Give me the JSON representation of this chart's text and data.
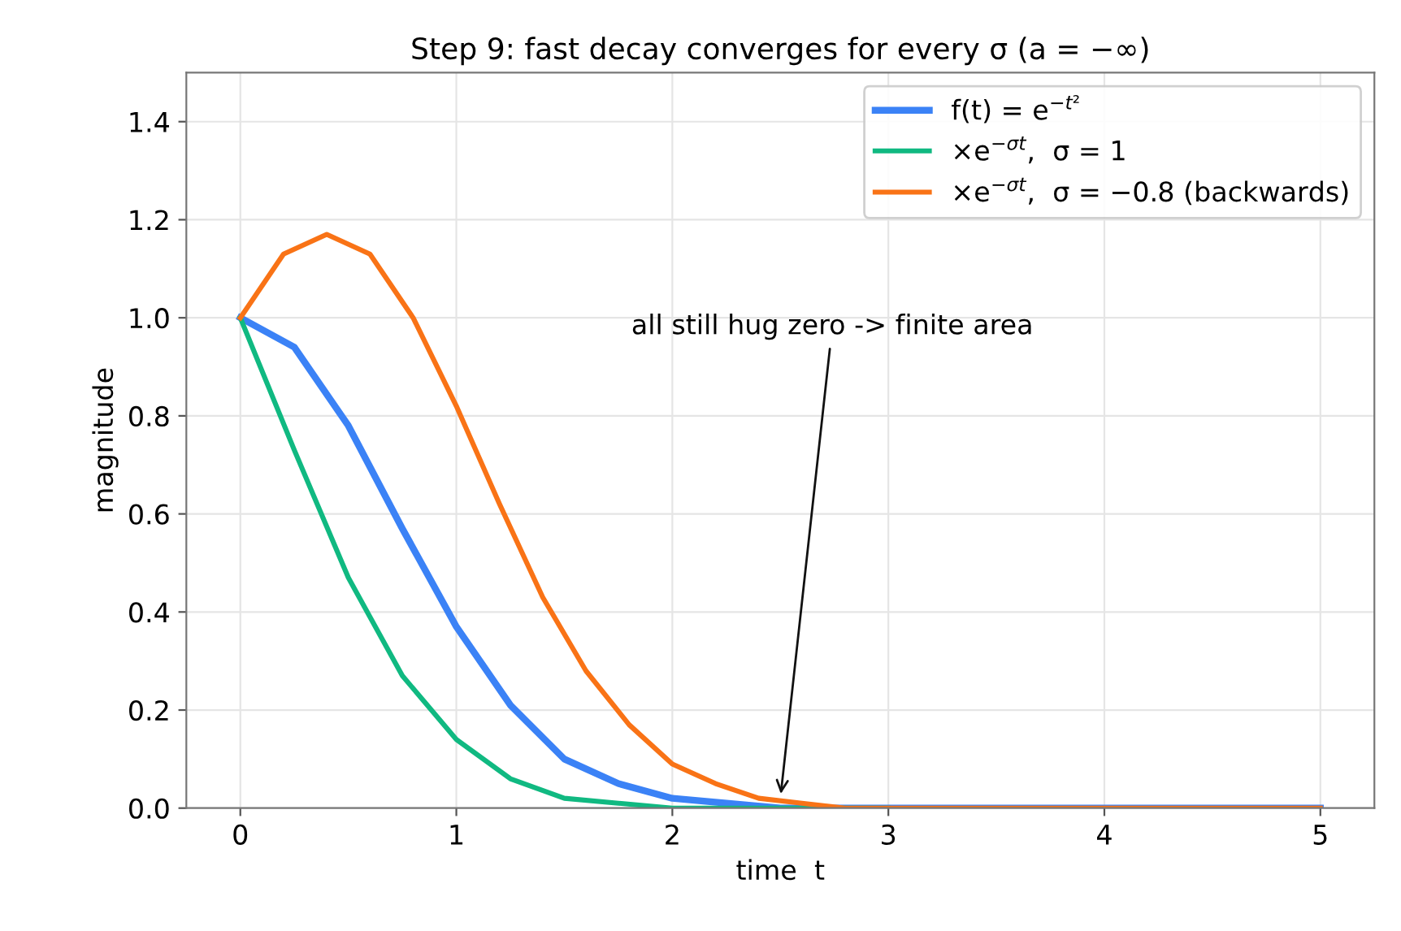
{
  "chart_data": {
    "type": "line",
    "title": "Step 9: fast decay converges for every σ (a = −∞)",
    "xlabel": "time  t",
    "ylabel": "magnitude",
    "xlim": [
      -0.25,
      5.25
    ],
    "ylim": [
      0,
      1.5
    ],
    "xticks": [
      0,
      1,
      2,
      3,
      4,
      5
    ],
    "yticks": [
      {
        "value": 0,
        "label": "0.0"
      },
      0.2,
      0.4,
      0.6,
      0.8,
      {
        "value": 1,
        "label": "1.0"
      },
      1.2,
      1.4
    ],
    "grid": true,
    "legend": "top right",
    "marker": "none",
    "line_style": "solid",
    "annotations": [
      {
        "text": "all still hug zero -> finite area",
        "x": 2.5,
        "y": 0.02
      }
    ],
    "series": [
      {
        "name": "f(t) = e$^{−t²}$",
        "color": "#3b82f6",
        "x": [
          0,
          0.25,
          0.5,
          0.75,
          1,
          1.25,
          1.5,
          1.75,
          2,
          2.5,
          3,
          4,
          5
        ],
        "values": [
          1.0,
          0.94,
          0.78,
          0.57,
          0.37,
          0.21,
          0.1,
          0.05,
          0.02,
          0.0,
          0.0,
          0.0,
          0.0
        ]
      },
      {
        "name": "×e$^{−σt}$,  σ = 1",
        "color": "#10b981",
        "x": [
          0,
          0.25,
          0.5,
          0.75,
          1,
          1.25,
          1.5,
          1.75,
          2,
          2.5,
          3
        ],
        "values": [
          1.0,
          0.73,
          0.47,
          0.27,
          0.14,
          0.06,
          0.02,
          0.01,
          0.0,
          0.0,
          0.0
        ]
      },
      {
        "name": "×e$^{−σt}$,  σ = −0.8 (backwards)",
        "color": "#f97316",
        "x": [
          0,
          0.2,
          0.4,
          0.6,
          0.8,
          1.0,
          1.2,
          1.4,
          1.6,
          1.8,
          2.0,
          2.2,
          2.4,
          2.6,
          2.8,
          3.0,
          3.5,
          4,
          5
        ],
        "values": [
          1.0,
          1.13,
          1.17,
          1.13,
          1.0,
          0.82,
          0.62,
          0.43,
          0.28,
          0.17,
          0.09,
          0.05,
          0.02,
          0.01,
          0.0,
          0.0,
          0.0,
          0.0,
          0.0
        ]
      }
    ]
  }
}
